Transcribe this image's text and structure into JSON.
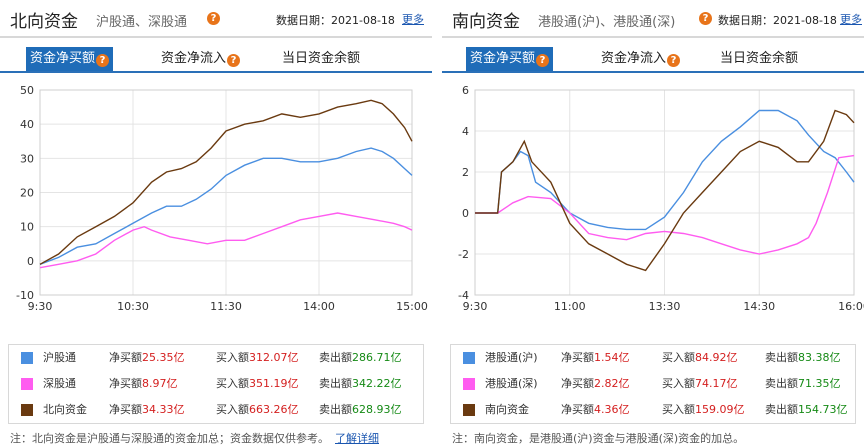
{
  "left": {
    "title": "北向资金",
    "subtitle": "沪股通、深股通",
    "date_label": "数据日期：2021-08-18",
    "more": "更多",
    "tabs": [
      "资金净买额",
      "资金净流入",
      "当日资金余额"
    ],
    "legend": [
      {
        "name": "沪股通",
        "color": "#4a8fe0",
        "net": "25.35亿",
        "buy": "312.07亿",
        "sell": "286.71亿"
      },
      {
        "name": "深股通",
        "color": "#ff5cf0",
        "net": "8.97亿",
        "buy": "351.19亿",
        "sell": "342.22亿"
      },
      {
        "name": "北向资金",
        "color": "#6a3a10",
        "net": "34.33亿",
        "buy": "663.26亿",
        "sell": "628.93亿"
      }
    ],
    "labels": {
      "net": "净买额",
      "buy": "买入额",
      "sell": "卖出额"
    },
    "note": "注：北向资金是沪股通与深股通的资金加总；资金数据仅供参考。",
    "note_link": "了解详细",
    "chart_data": {
      "type": "line",
      "x_ticks": [
        "9:30",
        "10:30",
        "11:30",
        "14:00",
        "15:00"
      ],
      "ylim": [
        -10,
        50
      ],
      "y_ticks": [
        -10,
        0,
        10,
        20,
        30,
        40,
        50
      ],
      "grid": true,
      "series": [
        {
          "name": "沪股通",
          "color": "#4a8fe0",
          "points": [
            [
              0,
              -1
            ],
            [
              0.05,
              1
            ],
            [
              0.1,
              4
            ],
            [
              0.15,
              5
            ],
            [
              0.2,
              8
            ],
            [
              0.25,
              11
            ],
            [
              0.3,
              14
            ],
            [
              0.34,
              16
            ],
            [
              0.38,
              16
            ],
            [
              0.42,
              18
            ],
            [
              0.46,
              21
            ],
            [
              0.5,
              25
            ],
            [
              0.55,
              28
            ],
            [
              0.6,
              30
            ],
            [
              0.65,
              30
            ],
            [
              0.7,
              29
            ],
            [
              0.75,
              29
            ],
            [
              0.8,
              30
            ],
            [
              0.85,
              32
            ],
            [
              0.89,
              33
            ],
            [
              0.92,
              32
            ],
            [
              0.95,
              30
            ],
            [
              0.98,
              27
            ],
            [
              1,
              25
            ]
          ]
        },
        {
          "name": "深股通",
          "color": "#ff5cf0",
          "points": [
            [
              0,
              -2
            ],
            [
              0.05,
              -1
            ],
            [
              0.1,
              0
            ],
            [
              0.15,
              2
            ],
            [
              0.2,
              6
            ],
            [
              0.25,
              9
            ],
            [
              0.28,
              10
            ],
            [
              0.3,
              9
            ],
            [
              0.35,
              7
            ],
            [
              0.4,
              6
            ],
            [
              0.45,
              5
            ],
            [
              0.5,
              6
            ],
            [
              0.55,
              6
            ],
            [
              0.6,
              8
            ],
            [
              0.65,
              10
            ],
            [
              0.7,
              12
            ],
            [
              0.75,
              13
            ],
            [
              0.8,
              14
            ],
            [
              0.85,
              13
            ],
            [
              0.9,
              12
            ],
            [
              0.95,
              11
            ],
            [
              0.98,
              10
            ],
            [
              1,
              9
            ]
          ]
        },
        {
          "name": "北向资金",
          "color": "#6a3a10",
          "points": [
            [
              0,
              -1
            ],
            [
              0.05,
              2
            ],
            [
              0.1,
              7
            ],
            [
              0.15,
              10
            ],
            [
              0.2,
              13
            ],
            [
              0.25,
              17
            ],
            [
              0.3,
              23
            ],
            [
              0.34,
              26
            ],
            [
              0.38,
              27
            ],
            [
              0.42,
              29
            ],
            [
              0.46,
              33
            ],
            [
              0.5,
              38
            ],
            [
              0.55,
              40
            ],
            [
              0.6,
              41
            ],
            [
              0.65,
              43
            ],
            [
              0.7,
              42
            ],
            [
              0.75,
              43
            ],
            [
              0.8,
              45
            ],
            [
              0.85,
              46
            ],
            [
              0.89,
              47
            ],
            [
              0.92,
              46
            ],
            [
              0.95,
              43
            ],
            [
              0.98,
              39
            ],
            [
              1,
              35
            ]
          ]
        }
      ]
    }
  },
  "right": {
    "title": "南向资金",
    "subtitle": "港股通(沪)、港股通(深)",
    "date_label": "数据日期：2021-08-18",
    "more": "更多",
    "tabs": [
      "资金净买额",
      "资金净流入",
      "当日资金余额"
    ],
    "legend": [
      {
        "name": "港股通(沪)",
        "color": "#4a8fe0",
        "net": "1.54亿",
        "buy": "84.92亿",
        "sell": "83.38亿"
      },
      {
        "name": "港股通(深)",
        "color": "#ff5cf0",
        "net": "2.82亿",
        "buy": "74.17亿",
        "sell": "71.35亿"
      },
      {
        "name": "南向资金",
        "color": "#6a3a10",
        "net": "4.36亿",
        "buy": "159.09亿",
        "sell": "154.73亿"
      }
    ],
    "labels": {
      "net": "净买额",
      "buy": "买入额",
      "sell": "卖出额"
    },
    "note": "注：南向资金，是港股通(沪)资金与港股通(深)资金的加总。",
    "chart_data": {
      "type": "line",
      "x_ticks": [
        "9:30",
        "11:00",
        "13:30",
        "14:30",
        "16:00"
      ],
      "ylim": [
        -4,
        6
      ],
      "y_ticks": [
        -4,
        -2,
        0,
        2,
        4,
        6
      ],
      "grid": true,
      "series": [
        {
          "name": "港股通(沪)",
          "color": "#4a8fe0",
          "points": [
            [
              0,
              0
            ],
            [
              0.06,
              0
            ],
            [
              0.07,
              2
            ],
            [
              0.1,
              2.5
            ],
            [
              0.12,
              3
            ],
            [
              0.14,
              2.8
            ],
            [
              0.16,
              1.5
            ],
            [
              0.2,
              1
            ],
            [
              0.25,
              0
            ],
            [
              0.3,
              -0.5
            ],
            [
              0.35,
              -0.7
            ],
            [
              0.4,
              -0.8
            ],
            [
              0.45,
              -0.8
            ],
            [
              0.5,
              -0.2
            ],
            [
              0.55,
              1
            ],
            [
              0.6,
              2.5
            ],
            [
              0.65,
              3.5
            ],
            [
              0.7,
              4.2
            ],
            [
              0.75,
              5
            ],
            [
              0.8,
              5
            ],
            [
              0.85,
              4.5
            ],
            [
              0.88,
              3.8
            ],
            [
              0.92,
              3
            ],
            [
              0.95,
              2.7
            ],
            [
              0.98,
              2
            ],
            [
              1,
              1.5
            ]
          ]
        },
        {
          "name": "港股通(深)",
          "color": "#ff5cf0",
          "points": [
            [
              0,
              0
            ],
            [
              0.06,
              0
            ],
            [
              0.1,
              0.5
            ],
            [
              0.14,
              0.8
            ],
            [
              0.2,
              0.7
            ],
            [
              0.25,
              0
            ],
            [
              0.3,
              -1
            ],
            [
              0.35,
              -1.2
            ],
            [
              0.4,
              -1.3
            ],
            [
              0.45,
              -1
            ],
            [
              0.5,
              -0.9
            ],
            [
              0.55,
              -1
            ],
            [
              0.6,
              -1.2
            ],
            [
              0.65,
              -1.5
            ],
            [
              0.7,
              -1.8
            ],
            [
              0.75,
              -2
            ],
            [
              0.8,
              -1.8
            ],
            [
              0.85,
              -1.5
            ],
            [
              0.88,
              -1.2
            ],
            [
              0.9,
              -0.5
            ],
            [
              0.93,
              1
            ],
            [
              0.96,
              2.7
            ],
            [
              1,
              2.8
            ]
          ]
        },
        {
          "name": "南向资金",
          "color": "#6a3a10",
          "points": [
            [
              0,
              0
            ],
            [
              0.06,
              0
            ],
            [
              0.07,
              2
            ],
            [
              0.1,
              2.5
            ],
            [
              0.13,
              3.5
            ],
            [
              0.15,
              2.5
            ],
            [
              0.2,
              1.5
            ],
            [
              0.25,
              -0.5
            ],
            [
              0.3,
              -1.5
            ],
            [
              0.35,
              -2
            ],
            [
              0.4,
              -2.5
            ],
            [
              0.45,
              -2.8
            ],
            [
              0.5,
              -1.5
            ],
            [
              0.55,
              0
            ],
            [
              0.6,
              1
            ],
            [
              0.65,
              2
            ],
            [
              0.7,
              3
            ],
            [
              0.75,
              3.5
            ],
            [
              0.8,
              3.2
            ],
            [
              0.85,
              2.5
            ],
            [
              0.88,
              2.5
            ],
            [
              0.92,
              3.5
            ],
            [
              0.95,
              5
            ],
            [
              0.98,
              4.8
            ],
            [
              1,
              4.4
            ]
          ]
        }
      ]
    }
  }
}
